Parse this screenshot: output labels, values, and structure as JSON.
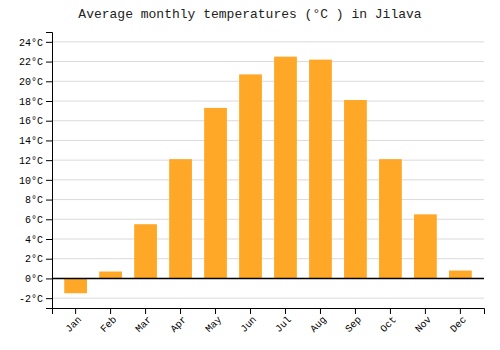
{
  "chart_data": {
    "type": "bar",
    "title": "Average monthly temperatures (°C ) in Jilava",
    "categories": [
      "Jan",
      "Feb",
      "Mar",
      "Apr",
      "May",
      "Jun",
      "Jul",
      "Aug",
      "Sep",
      "Oct",
      "Nov",
      "Dec"
    ],
    "values": [
      -1.5,
      0.7,
      5.5,
      12.1,
      17.3,
      20.7,
      22.5,
      22.2,
      18.1,
      12.1,
      6.5,
      0.8
    ],
    "color": "#FFA726",
    "ylim": [
      -3,
      25
    ],
    "yticks": [
      {
        "value": -2,
        "label": "-2°C"
      },
      {
        "value": 0,
        "label": "0°C"
      },
      {
        "value": 2,
        "label": "2°C"
      },
      {
        "value": 4,
        "label": "4°C"
      },
      {
        "value": 6,
        "label": "6°C"
      },
      {
        "value": 8,
        "label": "8°C"
      },
      {
        "value": 10,
        "label": "10°C"
      },
      {
        "value": 12,
        "label": "12°C"
      },
      {
        "value": 14,
        "label": "14°C"
      },
      {
        "value": 16,
        "label": "16°C"
      },
      {
        "value": 18,
        "label": "18°C"
      },
      {
        "value": 20,
        "label": "20°C"
      },
      {
        "value": 22,
        "label": "22°C"
      },
      {
        "value": 24,
        "label": "24°C"
      }
    ],
    "grid": true
  }
}
